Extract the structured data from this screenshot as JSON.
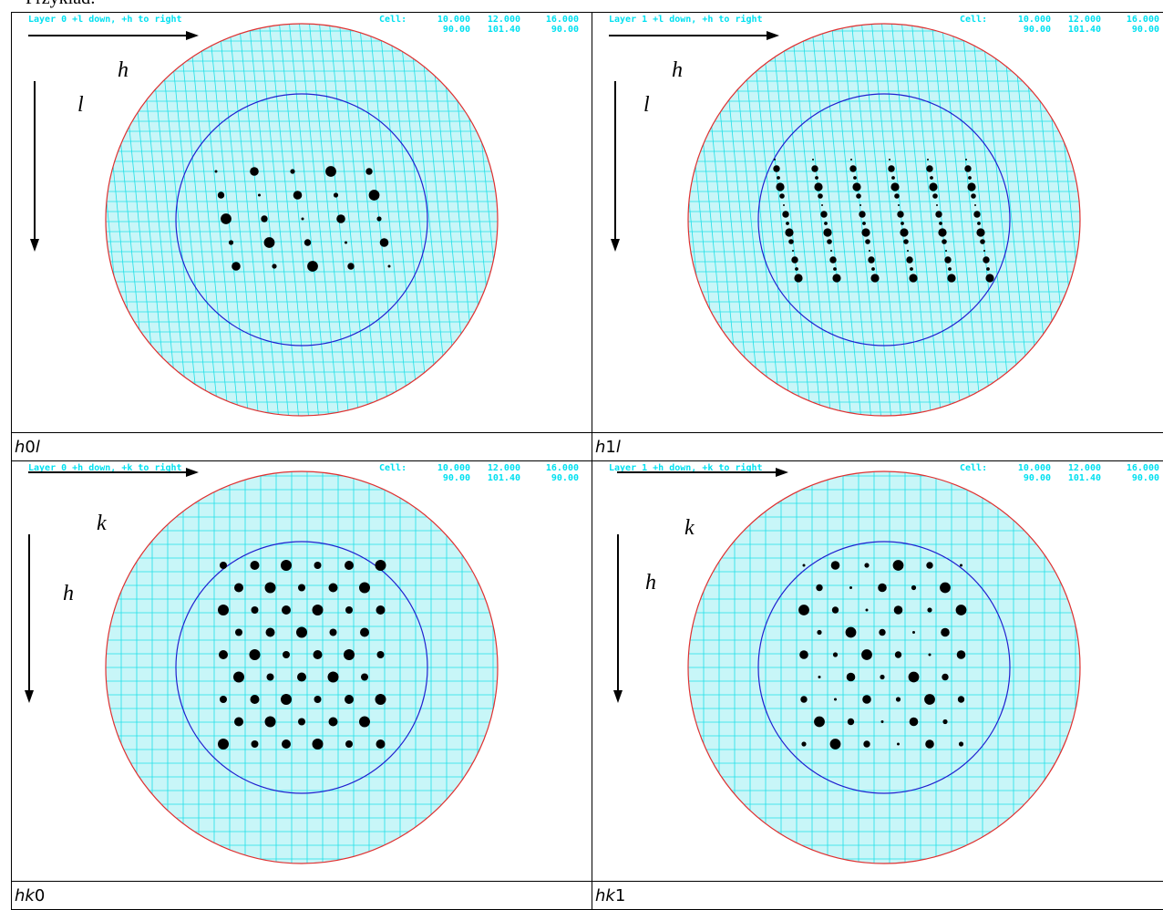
{
  "intro": "Przykład:",
  "panels": [
    {
      "header": {
        "layer": "Layer  0  +l down, +h to right",
        "cell_label": "Cell:",
        "cell_rows": [
          [
            "10.000",
            "12.000",
            "16.000"
          ],
          [
            "90.00",
            "101.40",
            "90.00"
          ]
        ]
      },
      "axis_labels": [
        "h",
        "l"
      ],
      "caption": [
        {
          "text": "h",
          "italic": true
        },
        {
          "text": "0",
          "italic": false
        },
        {
          "text": "l",
          "italic": true
        }
      ]
    },
    {
      "header": {
        "layer": "Layer  1  +l down, +h to right",
        "cell_label": "Cell:",
        "cell_rows": [
          [
            "10.000",
            "12.000",
            "16.000"
          ],
          [
            "90.00",
            "101.40",
            "90.00"
          ]
        ]
      },
      "axis_labels": [
        "h",
        "l"
      ],
      "caption": [
        {
          "text": "h",
          "italic": true
        },
        {
          "text": "1",
          "italic": false
        },
        {
          "text": "l",
          "italic": true
        }
      ]
    },
    {
      "header": {
        "layer": "Layer  0  +h down, +k to right",
        "cell_label": "Cell:",
        "cell_rows": [
          [
            "10.000",
            "12.000",
            "16.000"
          ],
          [
            "90.00",
            "101.40",
            "90.00"
          ]
        ]
      },
      "axis_labels": [
        "k",
        "h"
      ],
      "caption": [
        {
          "text": "hk",
          "italic": true
        },
        {
          "text": "0",
          "italic": false
        }
      ]
    },
    {
      "header": {
        "layer": "Layer  1  +h down, +k to right",
        "cell_label": "Cell:",
        "cell_rows": [
          [
            "10.000",
            "12.000",
            "16.000"
          ],
          [
            "90.00",
            "101.40",
            "90.00"
          ]
        ]
      },
      "axis_labels": [
        "k",
        "h"
      ],
      "caption": [
        {
          "text": "hk",
          "italic": true
        },
        {
          "text": "1",
          "italic": false
        }
      ]
    }
  ]
}
